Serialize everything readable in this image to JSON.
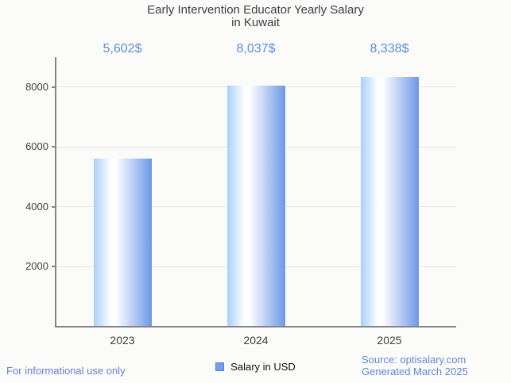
{
  "header": {
    "title_lines": [
      "Early Intervention Educator Yearly Salary",
      "in Kuwait"
    ]
  },
  "chart_data": {
    "type": "bar",
    "title": "Early Intervention Educator Yearly Salary in Kuwait",
    "categories": [
      "2023",
      "2024",
      "2025"
    ],
    "values": [
      5602,
      8037,
      8338
    ],
    "value_labels": [
      "5,602$",
      "8,037$",
      "8,338$"
    ],
    "series_name": "Salary in USD",
    "xlabel": "",
    "ylabel": "",
    "ylim": [
      0,
      9000
    ],
    "yticks": [
      2000,
      4000,
      6000,
      8000
    ],
    "grid": true,
    "legend_position": "bottom"
  },
  "legend": {
    "label": "Salary in USD"
  },
  "footer": {
    "left": "For informational use only",
    "source_line1": "Source: optisalary.com",
    "source_line2": "Generated March 2025"
  },
  "colors": {
    "background": "#fbfbf9",
    "title": "#3c4043",
    "accent_value_label": "#5e8edc",
    "axis": "#848484",
    "gridline": "#e7e7e4",
    "bar_edge_light": "#a9d1fb",
    "bar_middle": "#ffffff",
    "bar_edge_dark": "#6d97e8",
    "legend_swatch": "#6d9eeb",
    "legend_swatch_border": "#5a85cc",
    "footer_left_blue": "#6680d9",
    "footer_source_blue": "#6287d9"
  }
}
